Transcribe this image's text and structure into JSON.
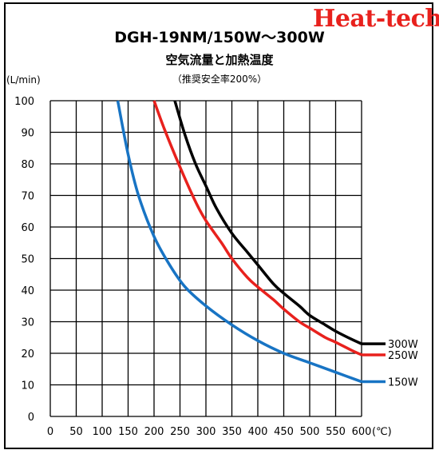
{
  "header": {
    "brand": "Heat-tech",
    "title": "DGH-19NM/150W～300W",
    "subtitle": "空気流量と加熱温度",
    "note": "（推奨安全率200%）"
  },
  "colors": {
    "s300": "#000000",
    "s250": "#e8211d",
    "s150": "#1874c4",
    "brand": "#e8211d"
  },
  "chart_data": {
    "type": "line",
    "title": "空気流量と加熱温度",
    "xlabel": "",
    "ylabel": "",
    "x_unit": "(℃)",
    "y_unit": "(L/min)",
    "xlim": [
      0,
      600
    ],
    "ylim": [
      0,
      100
    ],
    "x_ticks": [
      "0",
      "50",
      "100",
      "150",
      "200",
      "250",
      "300",
      "350",
      "400",
      "450",
      "500",
      "550",
      "600"
    ],
    "y_ticks": [
      "0",
      "10",
      "20",
      "30",
      "40",
      "50",
      "60",
      "70",
      "80",
      "90",
      "100"
    ],
    "grid": true,
    "legend": "right",
    "series": [
      {
        "name": "300W",
        "color": "#000000",
        "x": [
          240,
          260,
          280,
          300,
          320,
          350,
          380,
          400,
          430,
          450,
          480,
          500,
          530,
          550,
          580,
          600
        ],
        "y": [
          100,
          89,
          80,
          73,
          66,
          58,
          52,
          48,
          42,
          39,
          35,
          32,
          29,
          27,
          24.5,
          23
        ]
      },
      {
        "name": "250W",
        "color": "#e8211d",
        "x": [
          200,
          220,
          250,
          280,
          300,
          330,
          350,
          380,
          400,
          430,
          450,
          480,
          500,
          530,
          550,
          580,
          600
        ],
        "y": [
          100,
          91,
          79,
          68,
          62,
          55,
          50,
          44,
          41,
          37,
          34,
          30,
          28,
          25,
          23.5,
          21,
          19.5
        ]
      },
      {
        "name": "150W",
        "color": "#1874c4",
        "x": [
          130,
          150,
          170,
          200,
          230,
          260,
          300,
          350,
          400,
          450,
          500,
          550,
          600
        ],
        "y": [
          100,
          83,
          70,
          57,
          48,
          41,
          35,
          29,
          24,
          20,
          17,
          14,
          11
        ]
      }
    ]
  }
}
